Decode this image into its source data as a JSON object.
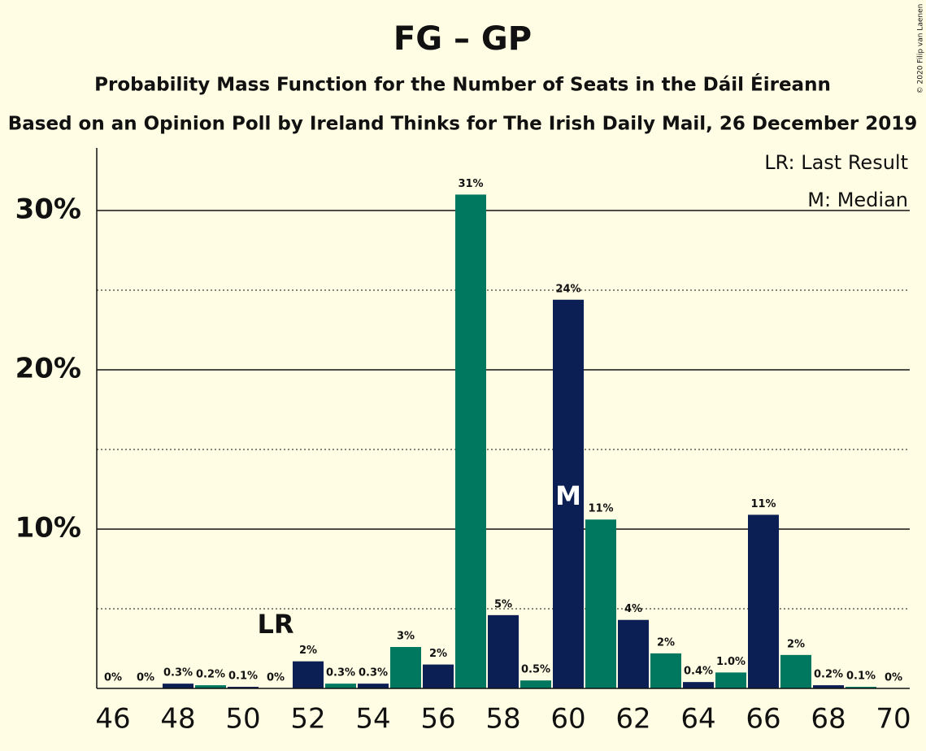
{
  "chart_data": {
    "type": "bar",
    "title": "FG – GP",
    "subtitle": "Probability Mass Function for the Number of Seats in the Dáil Éireann",
    "subtitle2": "Based on an Opinion Poll by Ireland Thinks for The Irish Daily Mail, 26 December 2019",
    "copyright": "© 2020 Filip van Laenen",
    "legend": [
      "LR: Last Result",
      "M: Median"
    ],
    "x": [
      46,
      47,
      48,
      49,
      50,
      51,
      52,
      53,
      54,
      55,
      56,
      57,
      58,
      59,
      60,
      61,
      62,
      63,
      64,
      65,
      66,
      67,
      68,
      69,
      70
    ],
    "values": [
      0,
      0,
      0.3,
      0.2,
      0.1,
      0,
      1.7,
      0.3,
      0.3,
      2.6,
      1.5,
      31.0,
      4.6,
      0.5,
      24.4,
      10.6,
      4.3,
      2.2,
      0.4,
      1.0,
      10.9,
      2.1,
      0.2,
      0.1,
      0
    ],
    "value_labels": [
      "0%",
      "0%",
      "0.3%",
      "0.2%",
      "0.1%",
      "0%",
      "2%",
      "0.3%",
      "0.3%",
      "3%",
      "2%",
      "31%",
      "5%",
      "0.5%",
      "24%",
      "11%",
      "4%",
      "2%",
      "0.4%",
      "1.0%",
      "11%",
      "2%",
      "0.2%",
      "0.1%",
      "0%"
    ],
    "colors": [
      "#0c1f54",
      "#00775f"
    ],
    "xlim": [
      45.5,
      70.5
    ],
    "xticks": [
      46,
      48,
      50,
      52,
      54,
      56,
      58,
      60,
      62,
      64,
      66,
      68,
      70
    ],
    "ylim": [
      0,
      34
    ],
    "yticks": [
      {
        "value": 10,
        "label": "10%"
      },
      {
        "value": 20,
        "label": "20%"
      },
      {
        "value": 30,
        "label": "30%"
      }
    ],
    "minor_yticks": [
      5,
      15,
      25
    ],
    "grid": true,
    "annotations": [
      {
        "text": "LR",
        "x": 51
      },
      {
        "text": "M",
        "x": 60
      }
    ]
  }
}
